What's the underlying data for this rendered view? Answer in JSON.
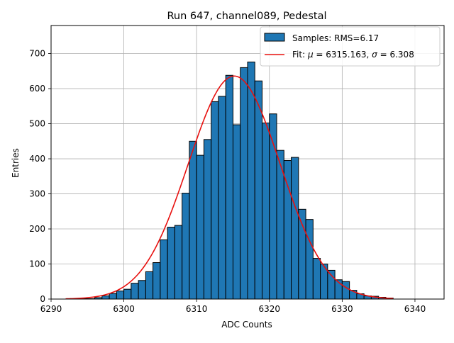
{
  "chart_data": {
    "type": "bar",
    "title": "Run 647, channel089, Pedestal",
    "xlabel": "ADC Counts",
    "ylabel": "Entries",
    "xlim": [
      6290,
      6344
    ],
    "ylim": [
      0,
      780
    ],
    "xticks": [
      6290,
      6300,
      6310,
      6320,
      6330,
      6340
    ],
    "yticks": [
      0,
      100,
      200,
      300,
      400,
      500,
      600,
      700
    ],
    "grid": true,
    "legend_placement": "top-right",
    "histogram": {
      "label": "Samples: RMS=6.17",
      "color": "#1f77b4",
      "edge_color": "#000000",
      "bin_edges": [
        6294,
        6295,
        6296,
        6297,
        6298,
        6299,
        6300,
        6301,
        6302,
        6303,
        6304,
        6305,
        6306,
        6307,
        6308,
        6309,
        6310,
        6311,
        6312,
        6313,
        6314,
        6315,
        6316,
        6317,
        6318,
        6319,
        6320,
        6321,
        6322,
        6323,
        6324,
        6325,
        6326,
        6327,
        6328,
        6329,
        6330,
        6331,
        6332,
        6333,
        6334,
        6335,
        6336,
        6337
      ],
      "counts": [
        1,
        1,
        4,
        9,
        16,
        23,
        28,
        45,
        53,
        78,
        104,
        169,
        205,
        210,
        302,
        450,
        410,
        455,
        563,
        578,
        638,
        497,
        660,
        676,
        622,
        502,
        528,
        424,
        395,
        404,
        256,
        227,
        116,
        100,
        82,
        55,
        50,
        25,
        15,
        9,
        8,
        5,
        3,
        6
      ]
    },
    "fit": {
      "label_prefix": "Fit: ",
      "mu_symbol": "μ",
      "mu_value": "6315.163",
      "sigma_symbol": "σ",
      "sigma_value": "6.308",
      "color": "#e8110f",
      "mu": 6315.163,
      "sigma": 6.308,
      "amplitude": 636,
      "x_range": [
        6292,
        6337
      ]
    }
  }
}
